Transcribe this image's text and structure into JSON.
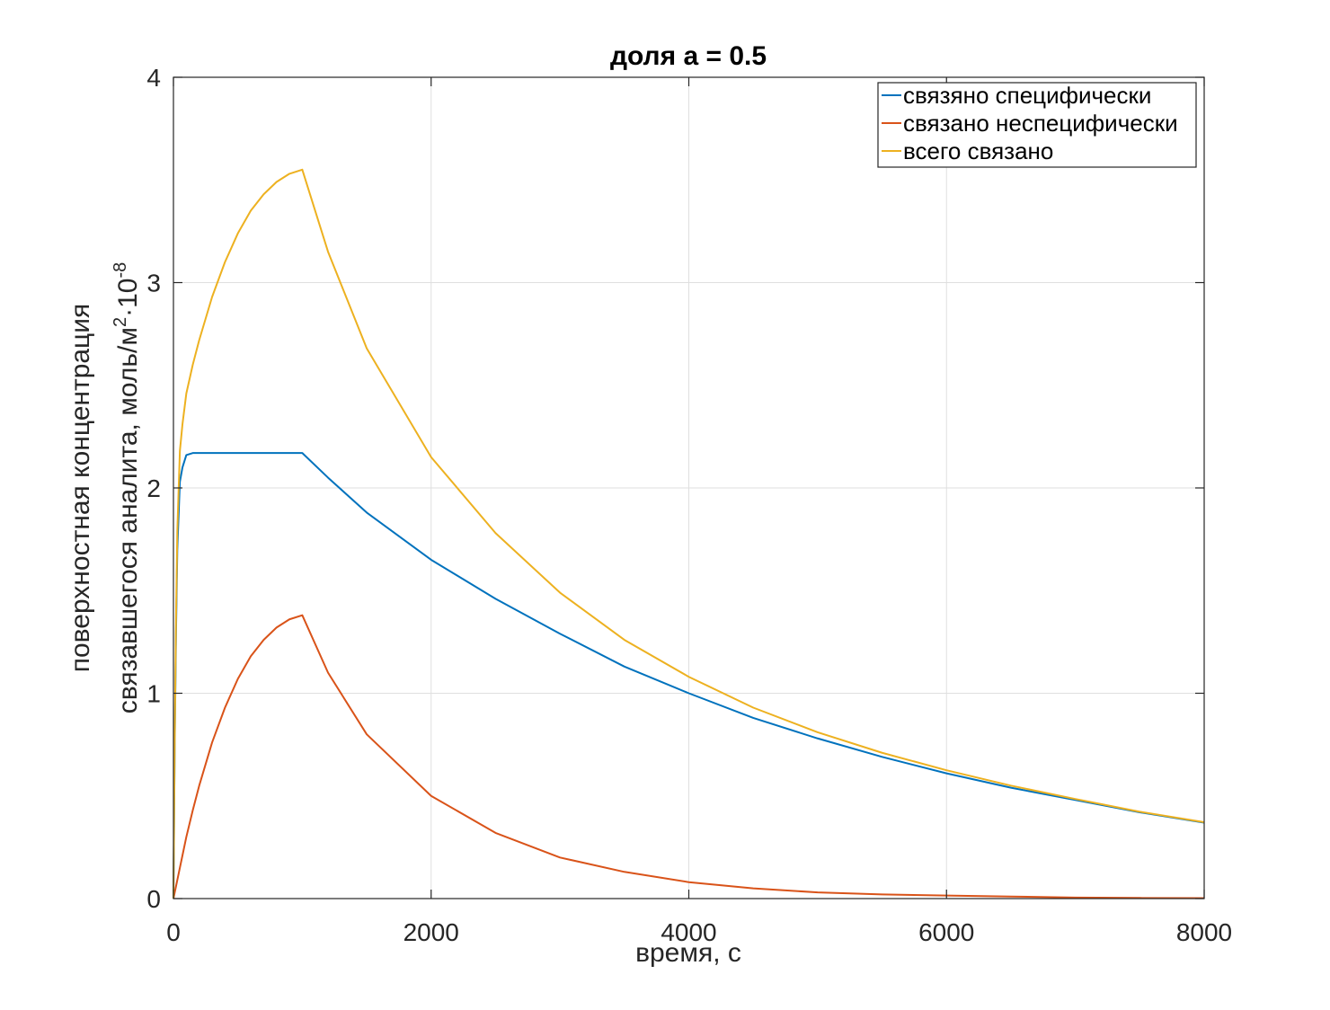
{
  "chart_data": {
    "type": "line",
    "title": "доля a = 0.5",
    "xlabel": "время, с",
    "ylabel_line1": "поверхностная концентрация",
    "ylabel_line2_prefix": "связавшегося аналита, моль/м",
    "ylabel_sup1": "2",
    "ylabel_mid": "·10",
    "ylabel_sup2": "-8",
    "xlim": [
      0,
      8000
    ],
    "ylim": [
      0,
      4
    ],
    "xticks": [
      0,
      2000,
      4000,
      6000,
      8000
    ],
    "xtick_labels": [
      "0",
      "2000",
      "4000",
      "6000",
      "8000"
    ],
    "yticks": [
      0,
      1,
      2,
      3,
      4
    ],
    "ytick_labels": [
      "0",
      "1",
      "2",
      "3",
      "4"
    ],
    "grid": true,
    "legend_position": "top-right",
    "x": [
      0,
      10,
      20,
      30,
      50,
      70,
      100,
      150,
      200,
      300,
      400,
      500,
      600,
      700,
      800,
      900,
      1000,
      1200,
      1500,
      2000,
      2500,
      3000,
      3500,
      4000,
      4500,
      5000,
      5500,
      6000,
      6500,
      7000,
      7500,
      8000
    ],
    "series": [
      {
        "name": "связяно специфически",
        "color": "#0072BD",
        "values": [
          0,
          0.75,
          1.3,
          1.7,
          2.03,
          2.1,
          2.16,
          2.17,
          2.17,
          2.17,
          2.17,
          2.17,
          2.17,
          2.17,
          2.17,
          2.17,
          2.17,
          2.05,
          1.88,
          1.65,
          1.46,
          1.29,
          1.13,
          1.0,
          0.88,
          0.78,
          0.69,
          0.61,
          0.54,
          0.48,
          0.42,
          0.37
        ]
      },
      {
        "name": "связано неспецифически",
        "color": "#D95319",
        "values": [
          0,
          0.03,
          0.06,
          0.09,
          0.15,
          0.21,
          0.3,
          0.43,
          0.55,
          0.76,
          0.93,
          1.07,
          1.18,
          1.26,
          1.32,
          1.36,
          1.38,
          1.1,
          0.8,
          0.5,
          0.32,
          0.2,
          0.13,
          0.08,
          0.05,
          0.03,
          0.02,
          0.015,
          0.01,
          0.005,
          0.003,
          0.002
        ]
      },
      {
        "name": "всего связано",
        "color": "#EDB120",
        "values": [
          0,
          0.78,
          1.36,
          1.79,
          2.18,
          2.31,
          2.46,
          2.6,
          2.72,
          2.93,
          3.1,
          3.24,
          3.35,
          3.43,
          3.49,
          3.53,
          3.55,
          3.15,
          2.68,
          2.15,
          1.78,
          1.49,
          1.26,
          1.08,
          0.93,
          0.81,
          0.71,
          0.625,
          0.55,
          0.485,
          0.423,
          0.372
        ]
      }
    ]
  }
}
